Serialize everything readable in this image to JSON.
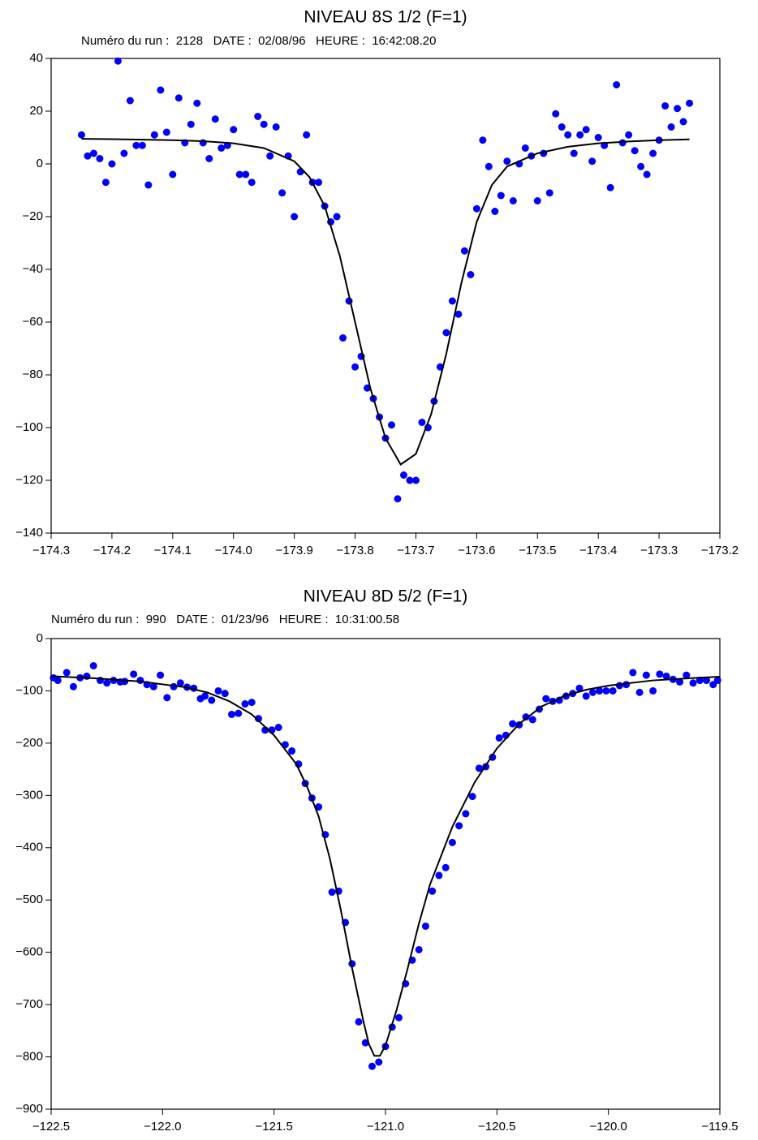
{
  "chart_data": [
    {
      "type": "scatter",
      "title": "NIVEAU 8S 1/2 (F=1)",
      "subtitle": "Numéro du run :  2128   DATE :  02/08/96   HEURE :  16:42:08.20",
      "xlim": [
        -174.3,
        -173.2
      ],
      "xticks": [
        {
          "value": -174.3,
          "label": "−174.3"
        },
        {
          "value": -174.2,
          "label": "−174.2"
        },
        {
          "value": -174.1,
          "label": "−174.1"
        },
        {
          "value": -174.0,
          "label": "−174.0"
        },
        {
          "value": -173.9,
          "label": "−173.9"
        },
        {
          "value": -173.8,
          "label": "−173.8"
        },
        {
          "value": -173.7,
          "label": "−173.7"
        },
        {
          "value": -173.6,
          "label": "−173.6"
        },
        {
          "value": -173.5,
          "label": "−173.5"
        },
        {
          "value": -173.4,
          "label": "−173.4"
        },
        {
          "value": -173.3,
          "label": "−173.3"
        },
        {
          "value": -173.2,
          "label": "−173.2"
        }
      ],
      "ylim": [
        -140,
        40
      ],
      "yticks": [
        {
          "value": -140,
          "label": "−140"
        },
        {
          "value": -120,
          "label": "−120"
        },
        {
          "value": -100,
          "label": "−100"
        },
        {
          "value": -80,
          "label": "−80"
        },
        {
          "value": -60,
          "label": "−60"
        },
        {
          "value": -40,
          "label": "−40"
        },
        {
          "value": -20,
          "label": "−20"
        },
        0,
        20,
        40
      ],
      "series": [
        {
          "type": "scatter",
          "color": "#0000ff",
          "x": [
            -174.25,
            -174.24,
            -174.23,
            -174.22,
            -174.21,
            -174.2,
            -174.19,
            -174.18,
            -174.17,
            -174.16,
            -174.15,
            -174.14,
            -174.13,
            -174.12,
            -174.11,
            -174.1,
            -174.09,
            -174.08,
            -174.07,
            -174.06,
            -174.05,
            -174.04,
            -174.03,
            -174.02,
            -174.01,
            -174.0,
            -173.99,
            -173.98,
            -173.97,
            -173.96,
            -173.95,
            -173.94,
            -173.93,
            -173.92,
            -173.91,
            -173.9,
            -173.89,
            -173.88,
            -173.87,
            -173.86,
            -173.85,
            -173.84,
            -173.83,
            -173.82,
            -173.81,
            -173.8,
            -173.79,
            -173.78,
            -173.77,
            -173.76,
            -173.75,
            -173.74,
            -173.73,
            -173.72,
            -173.71,
            -173.7,
            -173.69,
            -173.68,
            -173.67,
            -173.66,
            -173.65,
            -173.64,
            -173.63,
            -173.62,
            -173.61,
            -173.6,
            -173.59,
            -173.58,
            -173.57,
            -173.56,
            -173.55,
            -173.54,
            -173.53,
            -173.52,
            -173.51,
            -173.5,
            -173.49,
            -173.48,
            -173.47,
            -173.46,
            -173.45,
            -173.44,
            -173.43,
            -173.42,
            -173.41,
            -173.4,
            -173.39,
            -173.38,
            -173.37,
            -173.36,
            -173.35,
            -173.34,
            -173.33,
            -173.32,
            -173.31,
            -173.3,
            -173.29,
            -173.28,
            -173.27,
            -173.26,
            -173.25
          ],
          "values": [
            11,
            3,
            4,
            2,
            -7,
            0,
            39,
            4,
            24,
            7,
            7,
            -8,
            11,
            28,
            12,
            -4,
            25,
            8,
            15,
            23,
            8,
            2,
            17,
            6,
            7,
            13,
            -4,
            -4,
            -7,
            18,
            15,
            3,
            14,
            -11,
            3,
            -20,
            -3,
            11,
            -7,
            -7,
            -16,
            -22,
            -20,
            -66,
            -52,
            -77,
            -73,
            -85,
            -89,
            -96,
            -104,
            -99,
            -127,
            -118,
            -120,
            -120,
            -98,
            -100,
            -90,
            -77,
            -64,
            -52,
            -57,
            -33,
            -42,
            -17,
            9,
            -1,
            -18,
            -12,
            1,
            -14,
            0,
            6,
            3,
            -14,
            4,
            -11,
            19,
            14,
            11,
            4,
            11,
            13,
            1,
            10,
            7,
            -9,
            30,
            8,
            11,
            5,
            -1,
            -4,
            4,
            9,
            22,
            14,
            21,
            16,
            23
          ]
        },
        {
          "type": "line",
          "color": "#000000",
          "x": [
            -174.25,
            -174.2,
            -174.15,
            -174.1,
            -174.05,
            -174.0,
            -173.95,
            -173.9,
            -173.875,
            -173.85,
            -173.825,
            -173.8,
            -173.775,
            -173.75,
            -173.725,
            -173.7,
            -173.675,
            -173.65,
            -173.625,
            -173.6,
            -173.575,
            -173.55,
            -173.5,
            -173.45,
            -173.4,
            -173.35,
            -173.3,
            -173.25
          ],
          "values": [
            9.5,
            9.4,
            9.2,
            9,
            8.6,
            7.8,
            6,
            1,
            -5,
            -16,
            -35,
            -60,
            -85,
            -104,
            -114,
            -110,
            -95,
            -72,
            -45,
            -22,
            -8,
            -1,
            4,
            6.5,
            7.8,
            8.5,
            9,
            9.3
          ]
        }
      ]
    },
    {
      "type": "scatter",
      "title": "NIVEAU 8D 5/2 (F=1)",
      "subtitle": "Numéro du run :  990   DATE :  01/23/96   HEURE :  10:31:00.58",
      "xlim": [
        -122.5,
        -119.5
      ],
      "xticks": [
        {
          "value": -122.5,
          "label": "−122.5"
        },
        {
          "value": -122.0,
          "label": "−122.0"
        },
        {
          "value": -121.5,
          "label": "−121.5"
        },
        {
          "value": -121.0,
          "label": "−121.0"
        },
        {
          "value": -120.5,
          "label": "−120.5"
        },
        {
          "value": -120.0,
          "label": "−120.0"
        },
        {
          "value": -119.5,
          "label": "−119.5"
        }
      ],
      "ylim": [
        -900,
        0
      ],
      "yticks": [
        {
          "value": -900,
          "label": "−900"
        },
        {
          "value": -800,
          "label": "−800"
        },
        {
          "value": -700,
          "label": "−700"
        },
        {
          "value": -600,
          "label": "−600"
        },
        {
          "value": -500,
          "label": "−500"
        },
        {
          "value": -400,
          "label": "−400"
        },
        {
          "value": -300,
          "label": "−300"
        },
        {
          "value": -200,
          "label": "−200"
        },
        {
          "value": -100,
          "label": "−100"
        },
        0
      ],
      "series": [
        {
          "type": "scatter",
          "color": "#0000ff",
          "x": [
            -122.49,
            -122.47,
            -122.43,
            -122.4,
            -122.37,
            -122.34,
            -122.31,
            -122.28,
            -122.25,
            -122.22,
            -122.19,
            -122.17,
            -122.13,
            -122.1,
            -122.07,
            -122.04,
            -122.01,
            -121.98,
            -121.95,
            -121.92,
            -121.89,
            -121.86,
            -121.83,
            -121.81,
            -121.78,
            -121.75,
            -121.72,
            -121.69,
            -121.66,
            -121.63,
            -121.6,
            -121.57,
            -121.54,
            -121.51,
            -121.48,
            -121.45,
            -121.42,
            -121.39,
            -121.36,
            -121.33,
            -121.3,
            -121.27,
            -121.24,
            -121.21,
            -121.18,
            -121.15,
            -121.12,
            -121.09,
            -121.06,
            -121.03,
            -121.0,
            -120.97,
            -120.94,
            -120.91,
            -120.88,
            -120.85,
            -120.82,
            -120.79,
            -120.76,
            -120.73,
            -120.7,
            -120.67,
            -120.64,
            -120.61,
            -120.58,
            -120.55,
            -120.52,
            -120.49,
            -120.46,
            -120.43,
            -120.4,
            -120.37,
            -120.34,
            -120.31,
            -120.28,
            -120.25,
            -120.22,
            -120.19,
            -120.16,
            -120.13,
            -120.1,
            -120.07,
            -120.04,
            -120.01,
            -119.98,
            -119.95,
            -119.92,
            -119.89,
            -119.86,
            -119.83,
            -119.8,
            -119.77,
            -119.74,
            -119.71,
            -119.68,
            -119.65,
            -119.62,
            -119.59,
            -119.56,
            -119.53,
            -119.51
          ],
          "values": [
            -75,
            -80,
            -65,
            -92,
            -75,
            -72,
            -52,
            -80,
            -85,
            -80,
            -83,
            -82,
            -68,
            -80,
            -88,
            -92,
            -70,
            -113,
            -92,
            -85,
            -93,
            -95,
            -115,
            -110,
            -118,
            -100,
            -105,
            -145,
            -143,
            -125,
            -122,
            -153,
            -175,
            -175,
            -170,
            -203,
            -215,
            -240,
            -277,
            -305,
            -322,
            -375,
            -485,
            -483,
            -543,
            -622,
            -733,
            -773,
            -818,
            -810,
            -780,
            -743,
            -725,
            -660,
            -615,
            -595,
            -550,
            -483,
            -453,
            -438,
            -390,
            -358,
            -335,
            -302,
            -248,
            -245,
            -227,
            -190,
            -185,
            -163,
            -165,
            -150,
            -155,
            -135,
            -115,
            -120,
            -118,
            -110,
            -105,
            -95,
            -110,
            -103,
            -100,
            -100,
            -100,
            -90,
            -88,
            -65,
            -103,
            -70,
            -100,
            -68,
            -72,
            -78,
            -83,
            -70,
            -85,
            -80,
            -80,
            -88,
            -80
          ]
        },
        {
          "type": "line",
          "color": "#000000",
          "x": [
            -122.5,
            -122.3,
            -122.1,
            -121.9,
            -121.8,
            -121.7,
            -121.6,
            -121.5,
            -121.4,
            -121.35,
            -121.3,
            -121.25,
            -121.2,
            -121.15,
            -121.1,
            -121.075,
            -121.05,
            -121.025,
            -121.0,
            -120.95,
            -120.9,
            -120.85,
            -120.8,
            -120.7,
            -120.6,
            -120.5,
            -120.4,
            -120.3,
            -120.2,
            -120.1,
            -120.0,
            -119.8,
            -119.6,
            -119.5
          ],
          "values": [
            -72,
            -76,
            -82,
            -93,
            -103,
            -120,
            -145,
            -185,
            -240,
            -285,
            -340,
            -420,
            -520,
            -630,
            -730,
            -775,
            -798,
            -798,
            -778,
            -710,
            -630,
            -545,
            -470,
            -360,
            -275,
            -210,
            -163,
            -130,
            -110,
            -98,
            -90,
            -80,
            -75,
            -73
          ]
        }
      ]
    }
  ]
}
